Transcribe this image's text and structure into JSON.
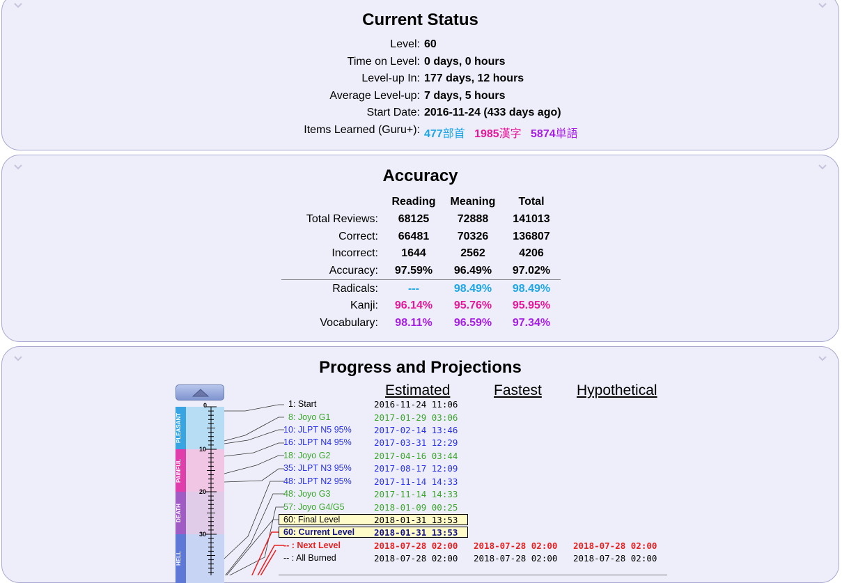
{
  "status": {
    "title": "Current Status",
    "rows": [
      {
        "label": "Level:",
        "value": "60"
      },
      {
        "label": "Time on Level:",
        "value": "0 days, 0 hours"
      },
      {
        "label": "Level-up In:",
        "value": "177 days, 12 hours"
      },
      {
        "label": "Average Level-up:",
        "value": "7 days, 5 hours"
      },
      {
        "label": "Start Date:",
        "value": "2016-11-24 (433 days ago)"
      }
    ],
    "items_label": "Items Learned (Guru+):",
    "radicals_count": "477",
    "radicals_word": "部首",
    "kanji_count": "1985",
    "kanji_word": "漢字",
    "vocab_count": "5874",
    "vocab_word": "単語"
  },
  "accuracy": {
    "title": "Accuracy",
    "headers": [
      "Reading",
      "Meaning",
      "Total"
    ],
    "rows": [
      {
        "label": "Total Reviews:",
        "values": [
          "68125",
          "72888",
          "141013"
        ]
      },
      {
        "label": "Correct:",
        "values": [
          "66481",
          "70326",
          "136807"
        ]
      },
      {
        "label": "Incorrect:",
        "values": [
          "1644",
          "2562",
          "4206"
        ]
      },
      {
        "label": "Accuracy:",
        "values": [
          "97.59%",
          "96.49%",
          "97.02%"
        ]
      },
      {
        "label": "Radicals:",
        "values": [
          "---",
          "98.49%",
          "98.49%"
        ]
      },
      {
        "label": "Kanji:",
        "values": [
          "96.14%",
          "95.76%",
          "95.95%"
        ]
      },
      {
        "label": "Vocabulary:",
        "values": [
          "98.11%",
          "96.59%",
          "97.34%"
        ]
      }
    ]
  },
  "progress": {
    "title": "Progress and Projections",
    "col_headers": [
      "Estimated",
      "Fastest",
      "Hypothetical"
    ],
    "bands": [
      "PLEASANT",
      "PAINFUL",
      "DEATH",
      "HELL"
    ],
    "scale_labels": [
      "0",
      "10",
      "20",
      "30"
    ],
    "milestones": [
      {
        "label": "1: Start",
        "estimated": "2016-11-24 11:06"
      },
      {
        "label": "8: Joyo G1",
        "estimated": "2017-01-29 03:06"
      },
      {
        "label": "10: JLPT N5 95%",
        "estimated": "2017-02-14 13:46"
      },
      {
        "label": "16: JLPT N4 95%",
        "estimated": "2017-03-31 12:29"
      },
      {
        "label": "18: Joyo G2",
        "estimated": "2017-04-16 03:44"
      },
      {
        "label": "35: JLPT N3 95%",
        "estimated": "2017-08-17 12:09"
      },
      {
        "label": "48: JLPT N2 95%",
        "estimated": "2017-11-14 14:33"
      },
      {
        "label": "48: Joyo G3",
        "estimated": "2017-11-14 14:33"
      },
      {
        "label": "57: Joyo G4/G5",
        "estimated": "2018-01-09 00:25"
      },
      {
        "label": "60: Final Level",
        "estimated": "2018-01-31 13:53"
      },
      {
        "label": "60: Current Level",
        "estimated": "2018-01-31 13:53"
      },
      {
        "label": "-- : Next Level",
        "estimated": "2018-07-28 02:00",
        "fastest": "2018-07-28 02:00",
        "hypothetical": "2018-07-28 02:00"
      },
      {
        "label": "-- : All Burned",
        "estimated": "2018-07-28 02:00",
        "fastest": "2018-07-28 02:00",
        "hypothetical": "2018-07-28 02:00"
      }
    ]
  },
  "colors": {
    "panel_bg": "#eeeefa",
    "panel_border": "#a8a8d0",
    "radicals": "#1da6e6",
    "kanji": "#e6189a",
    "vocabulary": "#a61ee6",
    "milestone_green": "#3aa52a",
    "milestone_blue": "#2730ee",
    "next_level_red": "#e82020"
  }
}
